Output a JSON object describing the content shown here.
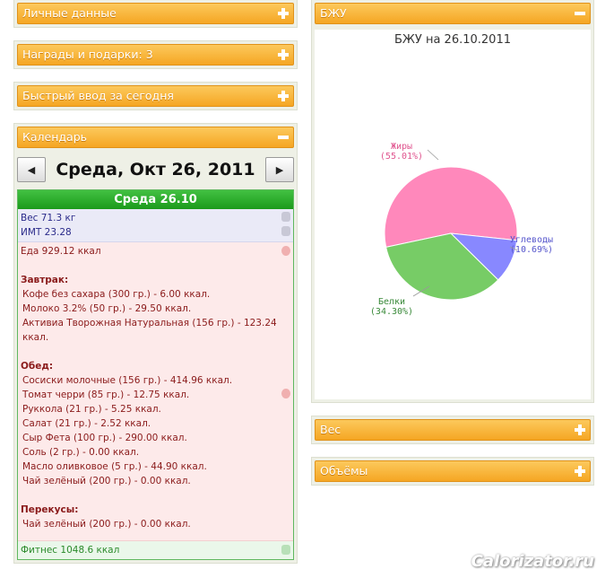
{
  "left_panels": {
    "personal": "Личные данные",
    "awards": "Награды и подарки: 3",
    "quick_input": "Быстрый ввод за сегодня",
    "calendar": "Календарь"
  },
  "calendar": {
    "prev_label": "◀",
    "next_label": "▶",
    "date_title": "Среда, Окт 26, 2011",
    "day_header": "Среда 26.10",
    "weight": "Вес 71.3 кг",
    "bmi": "ИМТ 23.28",
    "food_total": "Еда 929.12 ккал",
    "meals": [
      {
        "title": "Завтрак:",
        "items": [
          "Кофе без сахара (300 гр.) - 6.00 ккал.",
          "Молоко 3.2% (50 гр.) - 29.50 ккал.",
          "Активиа Творожная Натуральная (156 гр.) - 123.24 ккал."
        ]
      },
      {
        "title": "Обед:",
        "items": [
          "Сосиски молочные (156 гр.) - 414.96 ккал.",
          "Томат черри (85 гр.) - 12.75 ккал.",
          "Руккола (21 гр.) - 5.25 ккал.",
          "Салат (21 гр.) - 2.52 ккал.",
          "Сыр Фета (100 гр.) - 290.00 ккал.",
          "Соль (2 гр.) - 0.00 ккал.",
          "Масло оливковое (5 гр.) - 44.90 ккал.",
          "Чай зелёный (200 гр.) - 0.00 ккал."
        ]
      },
      {
        "title": "Перекусы:",
        "items": [
          "Чай зелёный (200 гр.) - 0.00 ккал."
        ]
      }
    ],
    "fitness": "Фитнес 1048.6 ккал"
  },
  "right_panels": {
    "bju": "БЖУ",
    "weight": "Вес",
    "volumes": "Объёмы"
  },
  "chart_data": {
    "type": "pie",
    "title": "БЖУ на 26.10.2011",
    "slices": [
      {
        "name": "Жиры",
        "label": "(55.01%)",
        "value": 55.01,
        "color": "#ff88bb"
      },
      {
        "name": "Углеводы",
        "label": "(10.69%)",
        "value": 10.69,
        "color": "#8888ff"
      },
      {
        "name": "Белки",
        "label": "(34.30%)",
        "value": 34.3,
        "color": "#77cc66"
      }
    ]
  },
  "watermark": "Calorizator.ru",
  "colors": {
    "header_orange": "#f5a623",
    "day_green": "#1b9a1b"
  }
}
